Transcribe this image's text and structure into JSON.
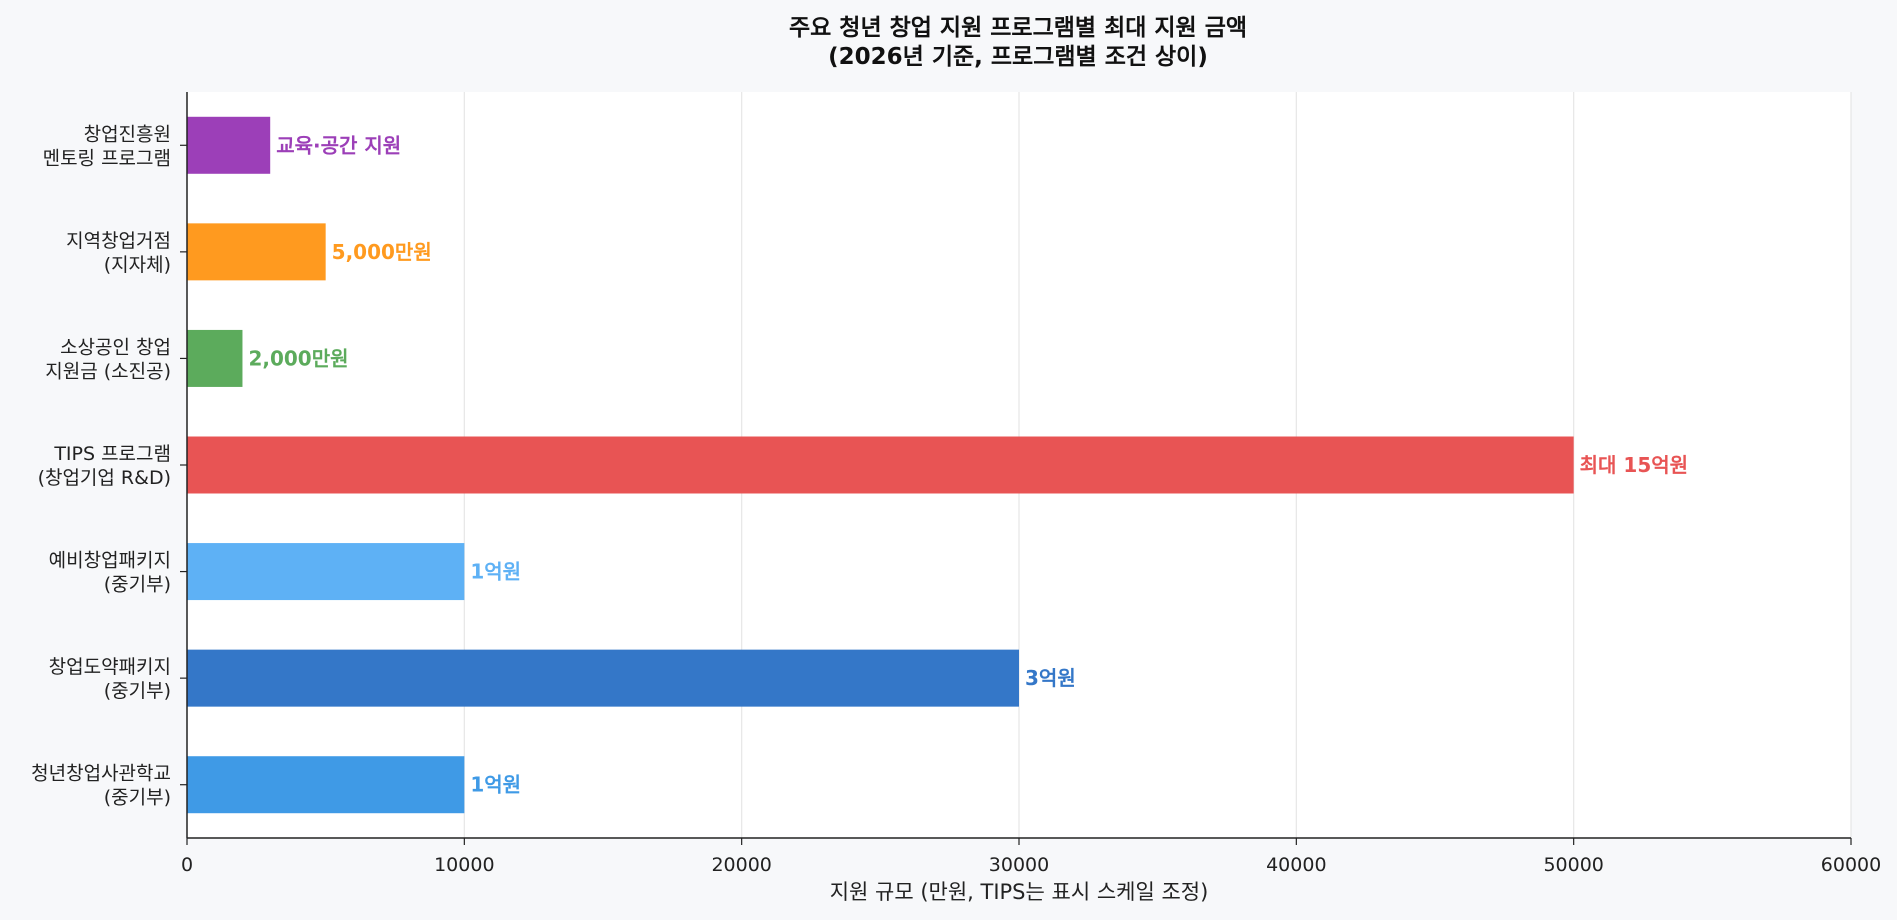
{
  "chart_data": {
    "type": "bar",
    "orientation": "horizontal",
    "title": [
      "주요 청년 창업 지원 프로그램별 최대 지원 금액",
      "(2026년 기준, 프로그램별 조건 상이)"
    ],
    "xlabel": "지원 규모 (만원, TIPS는 표시 스케일 조정)",
    "xlim": [
      0,
      60000
    ],
    "xticks": [
      "0",
      "10000",
      "20000",
      "30000",
      "40000",
      "50000",
      "60000"
    ],
    "grid": "x",
    "bars": [
      {
        "label": [
          "창업진흥원",
          "멘토링 프로그램"
        ],
        "value": 3000,
        "data_label": "교육·공간 지원",
        "color": "#9c3fb8"
      },
      {
        "label": [
          "지역창업거점",
          "(지자체)"
        ],
        "value": 5000,
        "data_label": "5,000만원",
        "color": "#ff9a1f"
      },
      {
        "label": [
          "소상공인 창업",
          "지원금 (소진공)"
        ],
        "value": 2000,
        "data_label": "2,000만원",
        "color": "#5cab5c"
      },
      {
        "label": [
          "TIPS 프로그램",
          "(창업기업 R&D)"
        ],
        "value": 50000,
        "data_label": "최대 15억원",
        "color": "#e85454"
      },
      {
        "label": [
          "예비창업패키지",
          "(중기부)"
        ],
        "value": 10000,
        "data_label": "1억원",
        "color": "#5eb1f5"
      },
      {
        "label": [
          "창업도약패키지",
          "(중기부)"
        ],
        "value": 30000,
        "data_label": "3억원",
        "color": "#3477c8"
      },
      {
        "label": [
          "청년창업사관학교",
          "(중기부)"
        ],
        "value": 10000,
        "data_label": "1억원",
        "color": "#3f9ae6"
      }
    ]
  }
}
